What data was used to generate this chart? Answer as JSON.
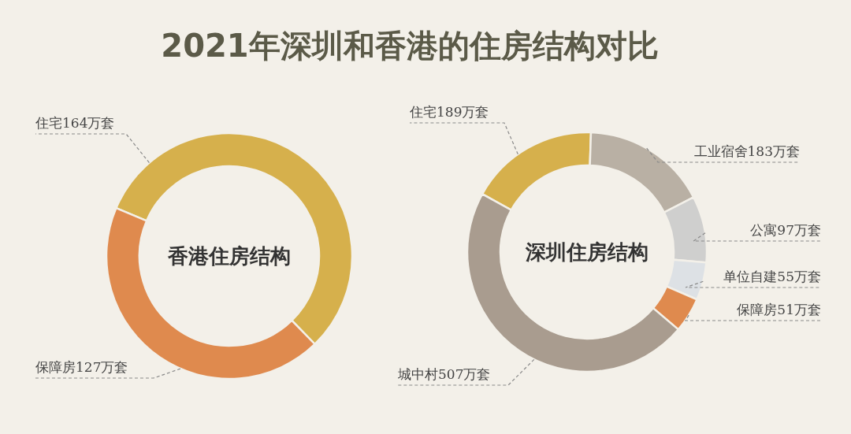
{
  "chart_data": [
    {
      "type": "donut",
      "title": "香港住房结构",
      "annotations": [
        "2021年深圳和香港的住房结构对比"
      ],
      "categories": [
        "住宅164万套",
        "保障房127万套"
      ],
      "values": [
        164,
        127
      ],
      "colors": [
        "#d6b04c",
        "#df8a4e"
      ]
    },
    {
      "type": "donut",
      "title": "深圳住房结构",
      "categories": [
        "住宅189万套",
        "工业宿舍183万套",
        "公寓97万套",
        "单位自建55万套",
        "保障房51万套",
        "城中村507万套"
      ],
      "values": [
        189,
        183,
        97,
        55,
        51,
        507
      ],
      "colors": [
        "#d6b04c",
        "#b9b0a4",
        "#cfcfce",
        "#dde1e5",
        "#df8a4e",
        "#a99c8f"
      ]
    }
  ]
}
